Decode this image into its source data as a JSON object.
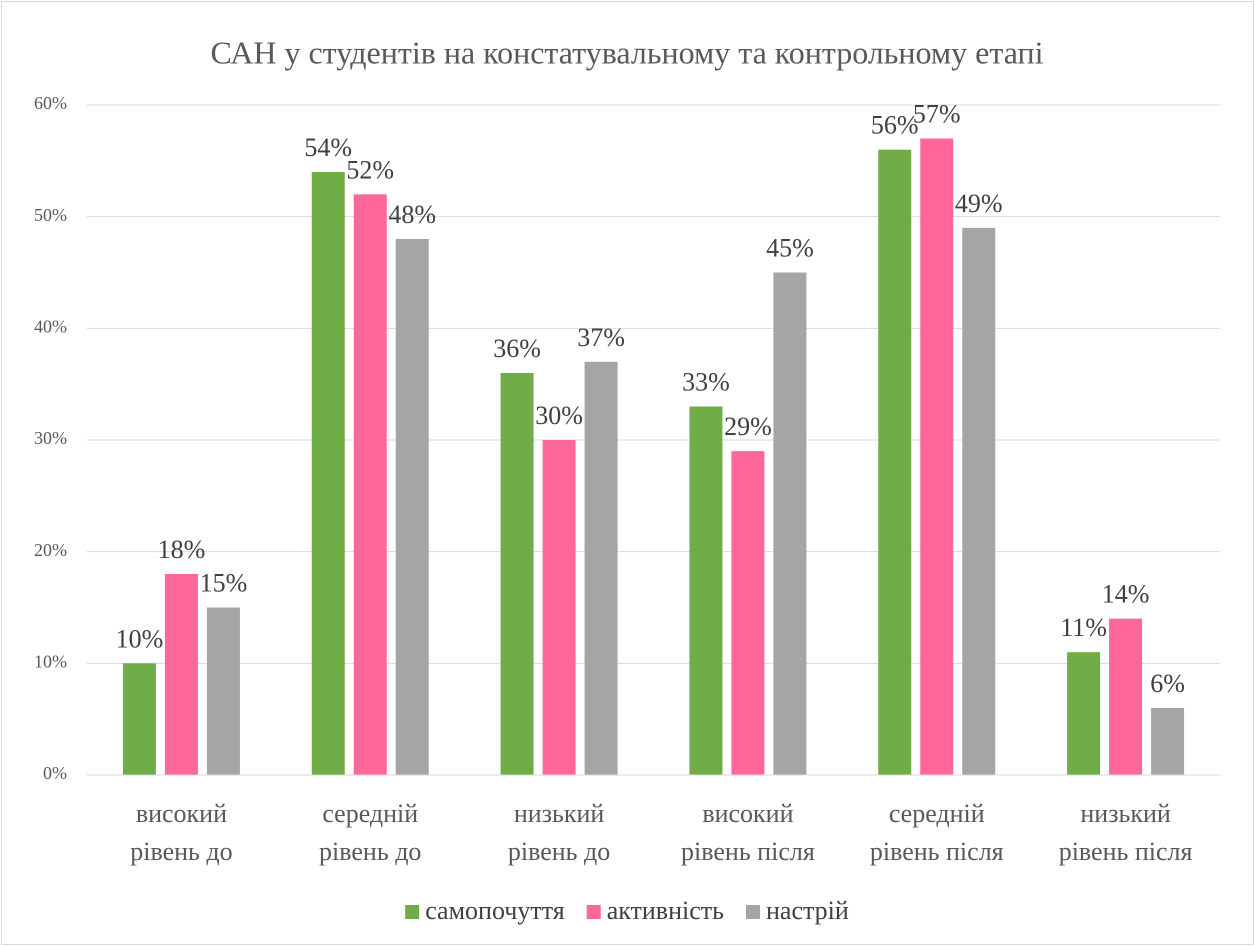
{
  "chart_data": {
    "type": "bar",
    "title": "САН у студентів на констатувальному та контрольному етапі",
    "categories": [
      "високий рівень до",
      "середній рівень до",
      "низький рівень до",
      "високий рівень після",
      "середній рівень після",
      "низький рівень після"
    ],
    "series": [
      {
        "name": "самопочуття",
        "color": "#70ad47",
        "values": [
          10,
          54,
          36,
          33,
          56,
          11
        ],
        "value_labels": [
          "10%",
          "54%",
          "36%",
          "33%",
          "56%",
          "11%"
        ]
      },
      {
        "name": "активність",
        "color": "#ff6699",
        "values": [
          18,
          52,
          30,
          29,
          57,
          14
        ],
        "value_labels": [
          "18%",
          "52%",
          "30%",
          "29%",
          "57%",
          "14%"
        ]
      },
      {
        "name": "настрій",
        "color": "#a5a5a5",
        "values": [
          15,
          48,
          37,
          45,
          49,
          6
        ],
        "value_labels": [
          "15%",
          "48%",
          "37%",
          "45%",
          "49%",
          "6%"
        ]
      }
    ],
    "ylim": [
      0,
      60
    ],
    "yticks": [
      {
        "value": 0,
        "label": "0%"
      },
      {
        "value": 10,
        "label": "10%"
      },
      {
        "value": 20,
        "label": "20%"
      },
      {
        "value": 30,
        "label": "30%"
      },
      {
        "value": 40,
        "label": "40%"
      },
      {
        "value": 50,
        "label": "50%"
      },
      {
        "value": 60,
        "label": "60%"
      }
    ],
    "grid": true,
    "legend": "bottom"
  }
}
